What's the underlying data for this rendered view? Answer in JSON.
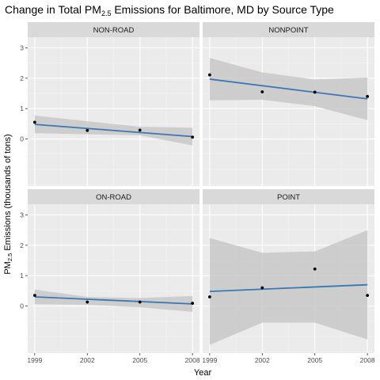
{
  "chart_data": {
    "type": "scatter",
    "title_prefix": "Change in Total PM",
    "title_sub": "2.5",
    "title_suffix": " Emissions for Baltimore, MD by Source Type",
    "xlabel": "Year",
    "ylabel_prefix": "PM",
    "ylabel_sub": "2.5",
    "ylabel_suffix": " Emissions (thousands of tons)",
    "x_ticks": [
      "1999",
      "2002",
      "2005",
      "2008"
    ],
    "y_ticks": [
      "0",
      "1",
      "2",
      "3"
    ],
    "xlim": [
      1998.6,
      2008.4
    ],
    "ylim": [
      -1.55,
      3.35
    ],
    "grid": true,
    "panels": [
      {
        "name": "NON-ROAD",
        "points": [
          {
            "x": 1999,
            "y": 0.55
          },
          {
            "x": 2002,
            "y": 0.28
          },
          {
            "x": 2005,
            "y": 0.29
          },
          {
            "x": 2008,
            "y": 0.06
          }
        ],
        "fit": {
          "x": [
            1999,
            2008
          ],
          "y": [
            0.48,
            0.08
          ]
        },
        "band": {
          "x": [
            1999,
            2005,
            2008
          ],
          "lower": [
            0.19,
            0.12,
            -0.21
          ],
          "upper": [
            0.77,
            0.4,
            0.37
          ]
        }
      },
      {
        "name": "NONPOINT",
        "points": [
          {
            "x": 1999,
            "y": 2.11
          },
          {
            "x": 2002,
            "y": 1.55
          },
          {
            "x": 2005,
            "y": 1.54
          },
          {
            "x": 2008,
            "y": 1.4
          }
        ],
        "fit": {
          "x": [
            1999,
            2008
          ],
          "y": [
            1.97,
            1.32
          ]
        },
        "band": {
          "x": [
            1999,
            2002,
            2005,
            2008
          ],
          "lower": [
            1.27,
            1.29,
            1.08,
            0.62
          ],
          "upper": [
            2.67,
            2.19,
            1.96,
            2.02
          ]
        }
      },
      {
        "name": "ON-ROAD",
        "points": [
          {
            "x": 1999,
            "y": 0.35
          },
          {
            "x": 2002,
            "y": 0.13
          },
          {
            "x": 2005,
            "y": 0.13
          },
          {
            "x": 2008,
            "y": 0.09
          }
        ],
        "fit": {
          "x": [
            1999,
            2008
          ],
          "y": [
            0.3,
            0.07
          ]
        },
        "band": {
          "x": [
            1999,
            2002,
            2005,
            2008
          ],
          "lower": [
            0.06,
            0.04,
            -0.04,
            -0.19
          ],
          "upper": [
            0.54,
            0.3,
            0.26,
            0.33
          ]
        }
      },
      {
        "name": "POINT",
        "points": [
          {
            "x": 1999,
            "y": 0.3
          },
          {
            "x": 2002,
            "y": 0.6
          },
          {
            "x": 2005,
            "y": 1.22
          },
          {
            "x": 2008,
            "y": 0.35
          }
        ],
        "fit": {
          "x": [
            1999,
            2008
          ],
          "y": [
            0.48,
            0.7
          ]
        },
        "band": {
          "x": [
            1999,
            2002,
            2005,
            2008
          ],
          "lower": [
            -1.28,
            -0.55,
            -0.55,
            -1.1
          ],
          "upper": [
            2.24,
            1.75,
            1.8,
            2.5
          ]
        }
      }
    ],
    "colors": {
      "panel_bg": "#ebebeb",
      "strip_bg": "#d9d9d9",
      "grid_major": "#ffffff",
      "grid_minor": "#f3f3f3",
      "band": "#c8c8c8",
      "fit_line": "#3a77b5",
      "point": "#000000"
    }
  }
}
